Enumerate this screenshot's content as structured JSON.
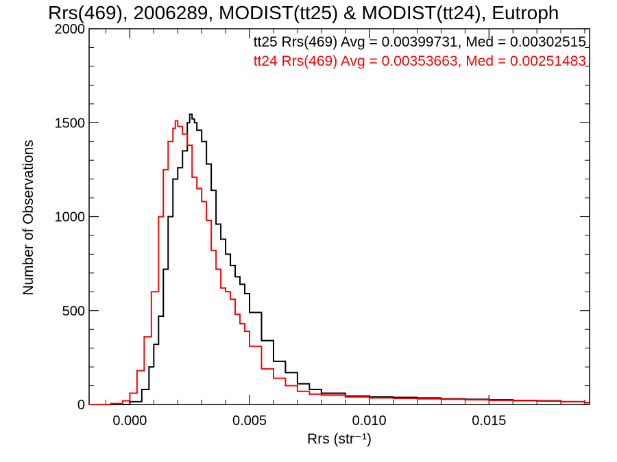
{
  "chart_data": {
    "type": "line",
    "title": "Rrs(469), 2006289, MODIST(tt25) & MODIST(tt24), Eutroph",
    "xlabel": "Rrs (str⁻¹)",
    "ylabel": "Number of Observations",
    "xlim": [
      -0.0017,
      0.0192
    ],
    "ylim": [
      0,
      2000
    ],
    "xticks": [
      0.0,
      0.005,
      0.01,
      0.015
    ],
    "xtick_labels": [
      "0.000",
      "0.005",
      "0.010",
      "0.015"
    ],
    "yticks": [
      0,
      500,
      1000,
      1500,
      2000
    ],
    "ytick_labels": [
      "0",
      "500",
      "1000",
      "1500",
      "2000"
    ],
    "grid": false,
    "step": true,
    "annotations": [
      {
        "text": "tt25 Rrs(469) Avg = 0.00399731, Med = 0.00302515",
        "color": "#000000"
      },
      {
        "text": "tt24 Rrs(469) Avg = 0.00353663, Med = 0.00251483",
        "color": "#ff0000"
      }
    ],
    "series": [
      {
        "color": "#000000",
        "x": [
          -0.0017,
          -0.0005,
          0.0,
          0.0005,
          0.0008,
          0.001,
          0.0012,
          0.0014,
          0.0016,
          0.0018,
          0.002,
          0.0022,
          0.0024,
          0.0025,
          0.0026,
          0.0027,
          0.0028,
          0.003,
          0.0032,
          0.0034,
          0.0036,
          0.0038,
          0.004,
          0.0042,
          0.0044,
          0.0046,
          0.0048,
          0.005,
          0.0055,
          0.006,
          0.0065,
          0.007,
          0.0075,
          0.008,
          0.009,
          0.01,
          0.011,
          0.012,
          0.013,
          0.014,
          0.015,
          0.016,
          0.017,
          0.018,
          0.019
        ],
        "y": [
          0,
          0,
          15,
          80,
          200,
          320,
          470,
          720,
          1000,
          1200,
          1260,
          1350,
          1500,
          1545,
          1520,
          1500,
          1460,
          1400,
          1280,
          1140,
          960,
          880,
          800,
          740,
          680,
          640,
          590,
          490,
          340,
          230,
          170,
          110,
          80,
          60,
          45,
          40,
          38,
          35,
          30,
          28,
          25,
          22,
          20,
          15,
          10
        ]
      },
      {
        "color": "#ff0000",
        "x": [
          -0.0017,
          -0.0008,
          -0.0003,
          0.0,
          0.0003,
          0.0006,
          0.0009,
          0.0012,
          0.0014,
          0.0016,
          0.0018,
          0.0019,
          0.002,
          0.0022,
          0.0024,
          0.0026,
          0.0028,
          0.003,
          0.0032,
          0.0034,
          0.0036,
          0.0038,
          0.004,
          0.0042,
          0.0044,
          0.0046,
          0.0048,
          0.005,
          0.0055,
          0.006,
          0.0065,
          0.007,
          0.0075,
          0.008,
          0.009,
          0.01,
          0.011,
          0.012,
          0.013,
          0.014,
          0.015,
          0.016,
          0.017,
          0.018,
          0.019
        ],
        "y": [
          0,
          5,
          20,
          60,
          180,
          360,
          600,
          1000,
          1250,
          1400,
          1470,
          1510,
          1480,
          1440,
          1380,
          1210,
          1150,
          1080,
          980,
          820,
          720,
          620,
          600,
          560,
          480,
          430,
          390,
          310,
          190,
          140,
          100,
          70,
          55,
          50,
          40,
          35,
          33,
          30,
          28,
          25,
          22,
          20,
          18,
          15,
          10
        ]
      }
    ]
  }
}
